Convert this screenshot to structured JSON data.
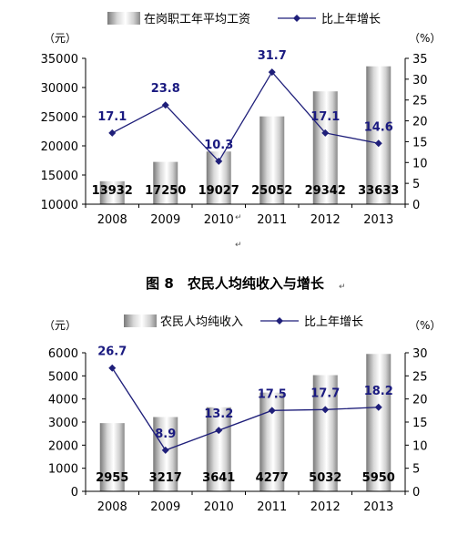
{
  "chart_data": [
    {
      "type": "bar+line",
      "categories": [
        "2008",
        "2009",
        "2010",
        "2011",
        "2012",
        "2013"
      ],
      "series": [
        {
          "name": "在岗职工年平均工资",
          "type": "bar",
          "axis": "left",
          "values": [
            13932,
            17250,
            19027,
            25052,
            29342,
            33633
          ]
        },
        {
          "name": "比上年增长",
          "type": "line",
          "axis": "right",
          "values": [
            17.1,
            23.8,
            10.3,
            31.7,
            17.1,
            14.6
          ]
        }
      ],
      "left_unit": "（元）",
      "right_unit": "（%）",
      "ylim_left": [
        10000,
        35000
      ],
      "yticks_left": [
        10000,
        15000,
        20000,
        25000,
        30000,
        35000
      ],
      "ylim_right": [
        0,
        35
      ],
      "yticks_right": [
        0,
        5,
        10,
        15,
        20,
        25,
        30,
        35
      ],
      "legend_position": "top",
      "grid": false
    },
    {
      "type": "bar+line",
      "title": "图 8　农民人均纯收入与增长",
      "categories": [
        "2008",
        "2009",
        "2010",
        "2011",
        "2012",
        "2013"
      ],
      "series": [
        {
          "name": "农民人均纯收入",
          "type": "bar",
          "axis": "left",
          "values": [
            2955,
            3217,
            3641,
            4277,
            5032,
            5950
          ]
        },
        {
          "name": "比上年增长",
          "type": "line",
          "axis": "right",
          "values": [
            26.7,
            8.9,
            13.2,
            17.5,
            17.7,
            18.2
          ]
        }
      ],
      "left_unit": "（元）",
      "right_unit": "（%）",
      "ylim_left": [
        0,
        6000
      ],
      "yticks_left": [
        0,
        1000,
        2000,
        3000,
        4000,
        5000,
        6000
      ],
      "ylim_right": [
        0,
        30
      ],
      "yticks_right": [
        0,
        5,
        10,
        15,
        20,
        25,
        30
      ],
      "legend_position": "top",
      "grid": false
    }
  ],
  "colors": {
    "line": "#1f1f7a",
    "label": "#1a1a80",
    "axis": "#000000"
  },
  "marks": {
    "arrow": "↵",
    "arrow_small": "↵"
  }
}
